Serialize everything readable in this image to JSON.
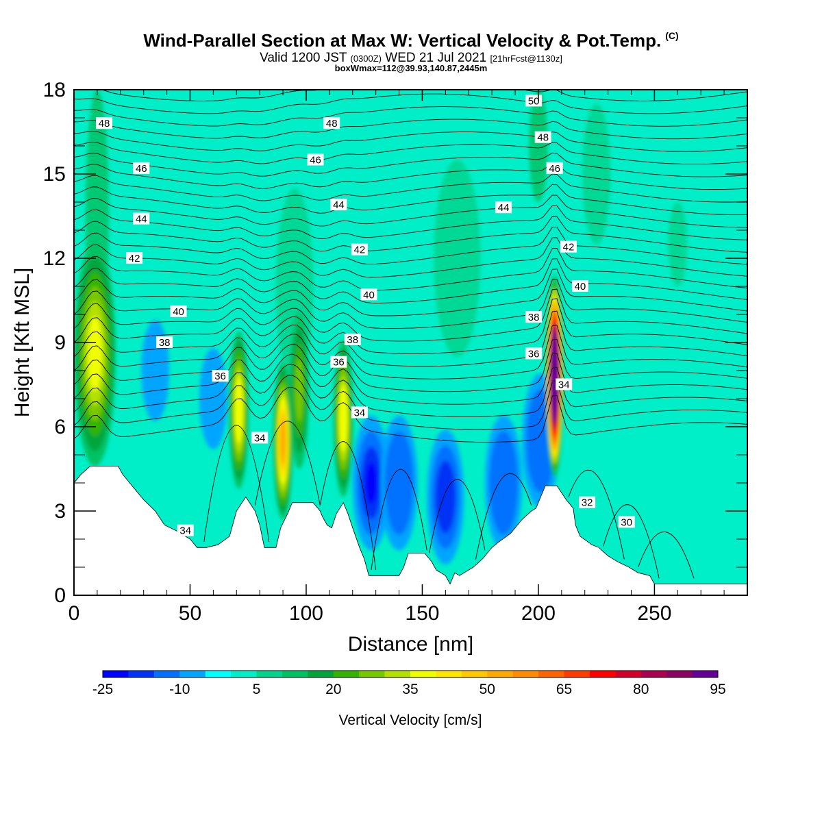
{
  "header": {
    "title": "Wind-Parallel Section at Max W: Vertical Velocity & Pot.Temp.",
    "copyright_mark": "(C)",
    "subtitle_part1": "Valid 1200 JST",
    "subtitle_utc": "(0300Z)",
    "subtitle_part2": "WED 21 Jul 2021",
    "subtitle_fcst": "[21hrFcst@1130z]",
    "subtitle2": "boxWmax=112@39.93,140.87,2445m"
  },
  "chart_data": {
    "type": "heatmap",
    "xlabel": "Distance [nm]",
    "ylabel": "Height [Kft MSL]",
    "xlim": [
      0,
      290
    ],
    "ylim": [
      0,
      18
    ],
    "x_ticks": [
      0,
      50,
      100,
      150,
      200,
      250
    ],
    "y_ticks": [
      0,
      3,
      6,
      9,
      12,
      15,
      18
    ],
    "colorbar": {
      "label": "Vertical Velocity [cm/s]",
      "tick_labels": [
        "-25",
        "-10",
        "5",
        "20",
        "35",
        "50",
        "65",
        "80",
        "95"
      ],
      "bin_edges_start": -25,
      "bin_width": 5,
      "colors": [
        "#0000ff",
        "#0033f5",
        "#0072ff",
        "#00a5ff",
        "#00ffff",
        "#00efc8",
        "#00d48c",
        "#00c264",
        "#00a53c",
        "#32b400",
        "#78c800",
        "#b4e100",
        "#f0ff00",
        "#ffe600",
        "#ffc800",
        "#ffaa00",
        "#ff8c00",
        "#ff6400",
        "#ff3c00",
        "#ff0000",
        "#d20028",
        "#aa0050",
        "#8c0064",
        "#640096"
      ]
    },
    "terrain_profile": [
      [
        0,
        4.0
      ],
      [
        3,
        4.3
      ],
      [
        7,
        4.6
      ],
      [
        19,
        4.6
      ],
      [
        21,
        4.3
      ],
      [
        25,
        3.9
      ],
      [
        30,
        3.4
      ],
      [
        35,
        3.0
      ],
      [
        39,
        2.5
      ],
      [
        44,
        2.3
      ],
      [
        50,
        2.0
      ],
      [
        53,
        1.7
      ],
      [
        57,
        1.7
      ],
      [
        62,
        1.8
      ],
      [
        67,
        2.1
      ],
      [
        70,
        3.0
      ],
      [
        74,
        3.5
      ],
      [
        78,
        3.0
      ],
      [
        80,
        2.5
      ],
      [
        82,
        1.7
      ],
      [
        87,
        1.7
      ],
      [
        89,
        2.4
      ],
      [
        92,
        2.9
      ],
      [
        94,
        3.3
      ],
      [
        103,
        3.3
      ],
      [
        105,
        3.1
      ],
      [
        106,
        3.0
      ],
      [
        107,
        2.8
      ],
      [
        109,
        2.5
      ],
      [
        111,
        2.4
      ],
      [
        113,
        2.9
      ],
      [
        116,
        3.3
      ],
      [
        118,
        2.9
      ],
      [
        120,
        2.4
      ],
      [
        123,
        1.7
      ],
      [
        125,
        1.3
      ],
      [
        127,
        0.7
      ],
      [
        140,
        0.7
      ],
      [
        142,
        1.0
      ],
      [
        144,
        1.5
      ],
      [
        151,
        1.5
      ],
      [
        154,
        1.2
      ],
      [
        156,
        0.9
      ],
      [
        160,
        0.7
      ],
      [
        162,
        0.4
      ],
      [
        164,
        0.8
      ],
      [
        166,
        0.7
      ],
      [
        168,
        0.8
      ],
      [
        172,
        1.0
      ],
      [
        176,
        1.3
      ],
      [
        180,
        1.7
      ],
      [
        183,
        1.9
      ],
      [
        188,
        2.2
      ],
      [
        193,
        2.7
      ],
      [
        197,
        3.0
      ],
      [
        199,
        3.1
      ],
      [
        203,
        3.9
      ],
      [
        208,
        3.9
      ],
      [
        212,
        3.4
      ],
      [
        215,
        3.1
      ],
      [
        216,
        2.5
      ],
      [
        218,
        2.1
      ],
      [
        223,
        1.8
      ],
      [
        226,
        1.7
      ],
      [
        230,
        1.4
      ],
      [
        234,
        1.2
      ],
      [
        239,
        1.0
      ],
      [
        243,
        0.8
      ],
      [
        248,
        0.7
      ],
      [
        250,
        0.4
      ],
      [
        290,
        0.4
      ]
    ],
    "updraft_cores": [
      {
        "x": 9,
        "z": 8.6,
        "w_max": 36
      },
      {
        "x": 71,
        "z": 6.6,
        "w_max": 38
      },
      {
        "x": 90,
        "z": 5.5,
        "w_max": 50
      },
      {
        "x": 97,
        "z": 7.3,
        "w_max": 25
      },
      {
        "x": 116,
        "z": 6.3,
        "w_max": 38
      },
      {
        "x": 207,
        "z": 7.8,
        "w_max": 112
      }
    ],
    "downdraft_cores": [
      {
        "x": 128,
        "z": 4.0,
        "w_min": -21
      },
      {
        "x": 140,
        "z": 4.0,
        "w_min": -14
      },
      {
        "x": 160,
        "z": 3.5,
        "w_min": -17
      },
      {
        "x": 185,
        "z": 4.0,
        "w_min": -14
      },
      {
        "x": 201,
        "z": 5.5,
        "w_min": -14
      },
      {
        "x": 35,
        "z": 8.0,
        "w_min": -8
      },
      {
        "x": 60,
        "z": 7.0,
        "w_min": -8
      }
    ],
    "theta_contours": {
      "levels": [
        30,
        32,
        34,
        36,
        38,
        40,
        42,
        44,
        46,
        48,
        50
      ],
      "labels": [
        {
          "text": "48",
          "x": 13,
          "z": 16.8
        },
        {
          "text": "48",
          "x": 111,
          "z": 16.8
        },
        {
          "text": "50",
          "x": 198,
          "z": 17.6
        },
        {
          "text": "48",
          "x": 202,
          "z": 16.3
        },
        {
          "text": "46",
          "x": 29,
          "z": 15.2
        },
        {
          "text": "46",
          "x": 104,
          "z": 15.5
        },
        {
          "text": "46",
          "x": 207,
          "z": 15.2
        },
        {
          "text": "44",
          "x": 29,
          "z": 13.4
        },
        {
          "text": "44",
          "x": 114,
          "z": 13.9
        },
        {
          "text": "44",
          "x": 185,
          "z": 13.8
        },
        {
          "text": "42",
          "x": 26,
          "z": 12.0
        },
        {
          "text": "42",
          "x": 123,
          "z": 12.3
        },
        {
          "text": "42",
          "x": 213,
          "z": 12.4
        },
        {
          "text": "40",
          "x": 45,
          "z": 10.1
        },
        {
          "text": "40",
          "x": 127,
          "z": 10.7
        },
        {
          "text": "40",
          "x": 218,
          "z": 11.0
        },
        {
          "text": "38",
          "x": 39,
          "z": 9.0
        },
        {
          "text": "38",
          "x": 120,
          "z": 9.1
        },
        {
          "text": "38",
          "x": 198,
          "z": 9.9
        },
        {
          "text": "36",
          "x": 63,
          "z": 7.8
        },
        {
          "text": "36",
          "x": 114,
          "z": 8.3
        },
        {
          "text": "36",
          "x": 198,
          "z": 8.6
        },
        {
          "text": "34",
          "x": 123,
          "z": 6.5
        },
        {
          "text": "34",
          "x": 80,
          "z": 5.6
        },
        {
          "text": "34",
          "x": 211,
          "z": 7.5
        },
        {
          "text": "34",
          "x": 48,
          "z": 2.3
        },
        {
          "text": "32",
          "x": 221,
          "z": 3.3
        },
        {
          "text": "30",
          "x": 238,
          "z": 2.6
        }
      ]
    }
  }
}
